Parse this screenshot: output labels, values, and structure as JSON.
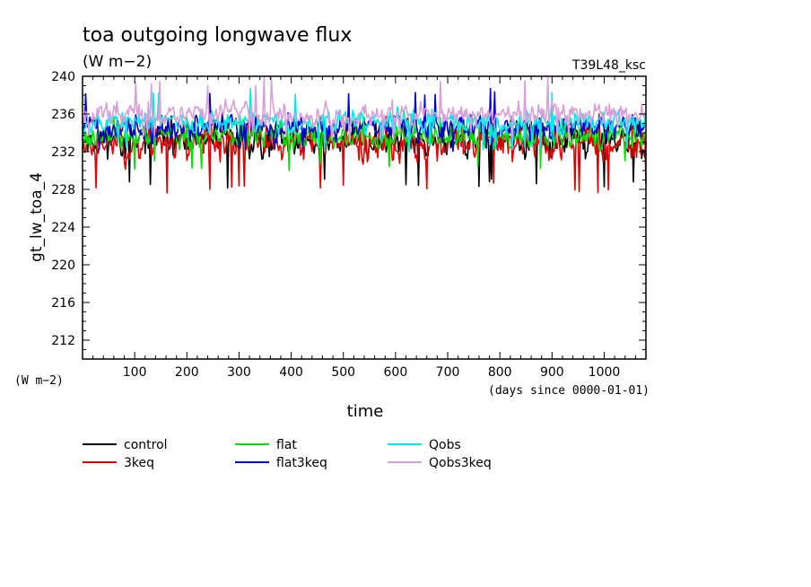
{
  "chart_data": {
    "type": "line",
    "title": "toa outgoing longwave flux",
    "subtitle": "(W m−2)",
    "run_label": "T39L48_ksc",
    "ylabel": "gt_lw_toa_4",
    "yunit": "(W m−2)",
    "xlabel": "time",
    "xunit": "(days since 0000-01-01)",
    "xlim": [
      0,
      1080
    ],
    "ylim": [
      210,
      240
    ],
    "xticks": [
      100,
      200,
      300,
      400,
      500,
      600,
      700,
      800,
      900,
      1000
    ],
    "yticks": [
      212,
      216,
      220,
      224,
      228,
      232,
      236,
      240
    ],
    "grid": false,
    "legend_position": "bottom",
    "series": [
      {
        "name": "control",
        "color": "#000000",
        "mean": 233.2,
        "amp": 1.6,
        "low": 228.0,
        "high": 236.0,
        "seed": 11
      },
      {
        "name": "3keq",
        "color": "#e00000",
        "mean": 233.0,
        "amp": 1.7,
        "low": 227.5,
        "high": 236.0,
        "seed": 23
      },
      {
        "name": "flat",
        "color": "#00e000",
        "mean": 233.6,
        "amp": 1.2,
        "low": 230.0,
        "high": 236.0,
        "seed": 37
      },
      {
        "name": "flat3keq",
        "color": "#0000d0",
        "mean": 234.6,
        "amp": 1.2,
        "low": 232.0,
        "high": 239.0,
        "seed": 41
      },
      {
        "name": "Qobs",
        "color": "#00e8e8",
        "mean": 235.2,
        "amp": 1.1,
        "low": 232.0,
        "high": 238.8,
        "seed": 53
      },
      {
        "name": "Qobs3keq",
        "color": "#d8a0d8",
        "mean": 236.0,
        "amp": 1.1,
        "low": 233.0,
        "high": 240.0,
        "seed": 67
      }
    ]
  }
}
